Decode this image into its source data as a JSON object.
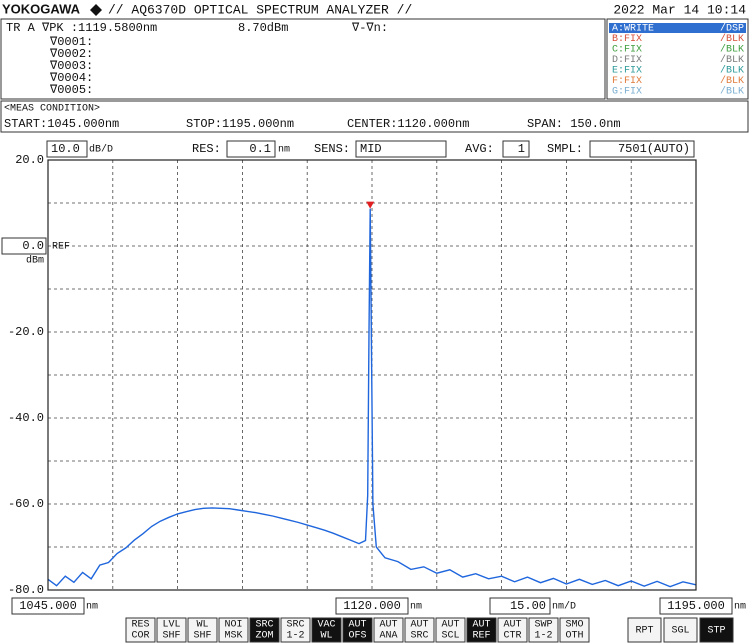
{
  "header": {
    "brand": "YOKOGAWA",
    "title": "// AQ6370D OPTICAL SPECTRUM ANALYZER //",
    "datetime": "2022 Mar 14 10:14"
  },
  "marker_panel": {
    "trace": "TR A ∇PK :1119.5800nm",
    "level": "8.70dBm",
    "delta": "∇-∇n:",
    "markers": [
      "∇0001:",
      "∇0002:",
      "∇0003:",
      "∇0004:",
      "∇0005:"
    ]
  },
  "traces": [
    {
      "name": "A:WRITE",
      "mode": "/DSP",
      "color": "#ffffff",
      "background": "#2f6fd0"
    },
    {
      "name": "B:FIX",
      "mode": "/BLK",
      "color": "#d8503a",
      "background": null
    },
    {
      "name": "C:FIX",
      "mode": "/BLK",
      "color": "#3e9e3e",
      "background": null
    },
    {
      "name": "D:FIX",
      "mode": "/BLK",
      "color": "#7a7a7a",
      "background": null
    },
    {
      "name": "E:FIX",
      "mode": "/BLK",
      "color": "#2e9a9a",
      "background": null
    },
    {
      "name": "F:FIX",
      "mode": "/BLK",
      "color": "#e07a3a",
      "background": null
    },
    {
      "name": "G:FIX",
      "mode": "/BLK",
      "color": "#7aaed0",
      "background": null
    }
  ],
  "meas_condition": {
    "title": "<MEAS CONDITION>",
    "start": "START:1045.000nm",
    "stop": "STOP:1195.000nm",
    "center": "CENTER:1120.000nm",
    "span": "SPAN: 150.0nm"
  },
  "settings": {
    "scale": "10.0",
    "scale_unit": "dB/D",
    "res_label": "RES:",
    "res": "0.1",
    "res_unit": "nm",
    "sens_label": "SENS:",
    "sens": "MID",
    "avg_label": "AVG:",
    "avg": "1",
    "smpl_label": "SMPL:",
    "smpl": "7501(AUTO)"
  },
  "chart_data": {
    "type": "line",
    "ref_label": "REF",
    "ref_unit": "dBm",
    "x_unit": "nm",
    "xdiv": "15.00",
    "xdiv_unit": "nm/D",
    "color": "#1f66dd",
    "marker_color": "#e02020",
    "grid": true,
    "xlim": [
      1045,
      1195
    ],
    "ylim": [
      -80,
      20
    ],
    "xticks": [
      {
        "value": 1045,
        "label": "1045.000"
      },
      {
        "value": 1060,
        "label": null
      },
      {
        "value": 1075,
        "label": null
      },
      {
        "value": 1090,
        "label": null
      },
      {
        "value": 1105,
        "label": null
      },
      {
        "value": 1120,
        "label": "1120.000"
      },
      {
        "value": 1135,
        "label": null
      },
      {
        "value": 1150,
        "label": null
      },
      {
        "value": 1165,
        "label": null
      },
      {
        "value": 1180,
        "label": null
      },
      {
        "value": 1195,
        "label": "1195.000"
      }
    ],
    "yticks": [
      {
        "value": 20,
        "label": "20.0"
      },
      {
        "value": 10,
        "label": null
      },
      {
        "value": 0,
        "label": "0.0"
      },
      {
        "value": -10,
        "label": null
      },
      {
        "value": -20,
        "label": "-20.0"
      },
      {
        "value": -30,
        "label": null
      },
      {
        "value": -40,
        "label": "-40.0"
      },
      {
        "value": -50,
        "label": null
      },
      {
        "value": -60,
        "label": "-60.0"
      },
      {
        "value": -70,
        "label": null
      },
      {
        "value": -80,
        "label": "-80.0"
      }
    ],
    "x": [
      1045,
      1047,
      1049,
      1051,
      1053,
      1055,
      1057,
      1059,
      1061,
      1063,
      1065,
      1067,
      1069,
      1071,
      1073,
      1075,
      1077,
      1079,
      1081,
      1083,
      1085,
      1087,
      1089,
      1091,
      1093,
      1095,
      1097,
      1099,
      1101,
      1103,
      1105,
      1107,
      1109,
      1111,
      1113,
      1115,
      1117,
      1118.5,
      1119.0,
      1119.3,
      1119.58,
      1119.85,
      1120.2,
      1121,
      1123,
      1126,
      1129,
      1132,
      1135,
      1138,
      1141,
      1144,
      1147,
      1150,
      1153,
      1156,
      1159,
      1162,
      1165,
      1168,
      1171,
      1174,
      1177,
      1180,
      1183,
      1186,
      1189,
      1192,
      1195
    ],
    "values": [
      -77.5,
      -79,
      -76.8,
      -78.2,
      -75.9,
      -77.4,
      -74.2,
      -73.6,
      -71.5,
      -70.2,
      -68.4,
      -66.9,
      -65.2,
      -64.0,
      -63.1,
      -62.3,
      -61.8,
      -61.3,
      -61.0,
      -60.9,
      -61.0,
      -61.1,
      -61.4,
      -61.7,
      -62.0,
      -62.4,
      -62.8,
      -63.3,
      -63.8,
      -64.3,
      -64.9,
      -65.5,
      -66.1,
      -66.8,
      -67.6,
      -68.4,
      -69.2,
      -68.5,
      -58,
      -20,
      8.7,
      -22,
      -60,
      -70,
      -72.5,
      -73.4,
      -75.2,
      -74.6,
      -76.1,
      -75.3,
      -77.0,
      -76.2,
      -77.4,
      -76.8,
      -78.1,
      -77.0,
      -78.3,
      -77.3,
      -78.6,
      -77.5,
      -78.7,
      -77.8,
      -79.0,
      -77.9,
      -79.1,
      -78.0,
      -79.2,
      -78.1,
      -78.8
    ]
  },
  "buttons": [
    {
      "label": [
        "RES",
        "COR"
      ],
      "active": false
    },
    {
      "label": [
        "LVL",
        "SHF"
      ],
      "active": false
    },
    {
      "label": [
        "WL",
        "SHF"
      ],
      "active": false
    },
    {
      "label": [
        "NOI",
        "MSK"
      ],
      "active": false
    },
    {
      "label": [
        "SRC",
        "ZOM"
      ],
      "active": true
    },
    {
      "label": [
        "SRC",
        "1-2"
      ],
      "active": false
    },
    {
      "label": [
        "VAC",
        "WL"
      ],
      "active": true
    },
    {
      "label": [
        "AUT",
        "OFS"
      ],
      "active": true
    },
    {
      "label": [
        "AUT",
        "ANA"
      ],
      "active": false
    },
    {
      "label": [
        "AUT",
        "SRC"
      ],
      "active": false
    },
    {
      "label": [
        "AUT",
        "SCL"
      ],
      "active": false
    },
    {
      "label": [
        "AUT",
        "REF"
      ],
      "active": true
    },
    {
      "label": [
        "AUT",
        "CTR"
      ],
      "active": false
    },
    {
      "label": [
        "SWP",
        "1-2"
      ],
      "active": false
    },
    {
      "label": [
        "SMO",
        "OTH"
      ],
      "active": false
    },
    {
      "label": [
        "RPT"
      ],
      "active": false
    },
    {
      "label": [
        "SGL"
      ],
      "active": false
    },
    {
      "label": [
        "STP"
      ],
      "active": true
    }
  ]
}
